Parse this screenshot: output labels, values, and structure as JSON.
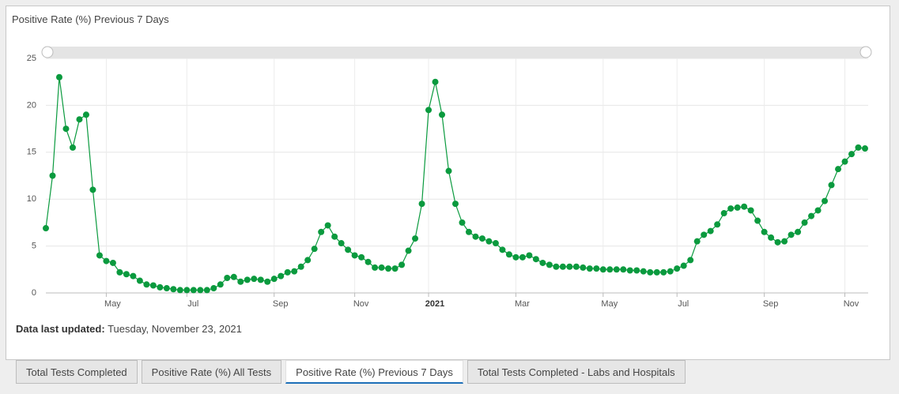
{
  "chart_data": {
    "type": "line",
    "title": "Positive Rate (%) Previous 7 Days",
    "categories": [
      null,
      null,
      null,
      null,
      null,
      null,
      null,
      null,
      null,
      "May",
      null,
      null,
      null,
      null,
      null,
      null,
      null,
      null,
      null,
      null,
      null,
      "Jul",
      null,
      null,
      null,
      null,
      null,
      null,
      null,
      null,
      null,
      null,
      null,
      null,
      "Sep",
      null,
      null,
      null,
      null,
      null,
      null,
      null,
      null,
      null,
      null,
      null,
      "Nov",
      null,
      null,
      null,
      null,
      null,
      null,
      null,
      null,
      null,
      null,
      "2021",
      null,
      null,
      null,
      null,
      null,
      null,
      null,
      null,
      null,
      null,
      null,
      null,
      "Mar",
      null,
      null,
      null,
      null,
      null,
      null,
      null,
      null,
      null,
      null,
      null,
      null,
      "May",
      null,
      null,
      null,
      null,
      null,
      null,
      null,
      null,
      null,
      null,
      "Jul",
      null,
      null,
      null,
      null,
      null,
      null,
      null,
      null,
      null,
      null,
      null,
      null,
      "Sep",
      null,
      null,
      null,
      null,
      null,
      null,
      null,
      null,
      null,
      null,
      null,
      "Nov",
      null,
      null,
      null
    ],
    "values": [
      6.9,
      12.5,
      23,
      17.5,
      15.5,
      18.5,
      19,
      11,
      4,
      3.4,
      3.2,
      2.2,
      2.0,
      1.8,
      1.3,
      0.9,
      0.8,
      0.6,
      0.5,
      0.4,
      0.3,
      0.3,
      0.3,
      0.3,
      0.3,
      0.5,
      0.9,
      1.6,
      1.7,
      1.2,
      1.4,
      1.5,
      1.4,
      1.2,
      1.5,
      1.8,
      2.2,
      2.3,
      2.8,
      3.5,
      4.7,
      6.5,
      7.2,
      6.0,
      5.3,
      4.6,
      4.0,
      3.8,
      3.3,
      2.7,
      2.7,
      2.6,
      2.6,
      3.0,
      4.5,
      5.8,
      9.5,
      19.5,
      22.5,
      19.0,
      13.0,
      9.5,
      7.5,
      6.5,
      6.0,
      5.8,
      5.5,
      5.3,
      4.6,
      4.1,
      3.8,
      3.8,
      4.0,
      3.6,
      3.2,
      3.0,
      2.8,
      2.8,
      2.8,
      2.8,
      2.7,
      2.6,
      2.6,
      2.5,
      2.5,
      2.5,
      2.5,
      2.4,
      2.4,
      2.3,
      2.2,
      2.2,
      2.2,
      2.3,
      2.6,
      2.9,
      3.5,
      5.5,
      6.2,
      6.6,
      7.3,
      8.5,
      9.0,
      9.1,
      9.2,
      8.8,
      7.7,
      6.5,
      5.9,
      5.4,
      5.5,
      6.2,
      6.5,
      7.5,
      8.2,
      8.8,
      9.8,
      11.5,
      13.2,
      14.0,
      14.8,
      15.5,
      15.4
    ],
    "color": "#0a9a3e",
    "ylim": [
      0,
      25
    ],
    "yticks": [
      0,
      5,
      10,
      15,
      20,
      25
    ],
    "grid": true
  },
  "footer": {
    "label": "Data last updated:",
    "value": "Tuesday, November 23, 2021"
  },
  "tabs": {
    "items": [
      "Total Tests Completed",
      "Positive Rate (%) All Tests",
      "Positive Rate (%) Previous 7 Days",
      "Total Tests Completed - Labs and Hospitals"
    ],
    "active": 2
  }
}
